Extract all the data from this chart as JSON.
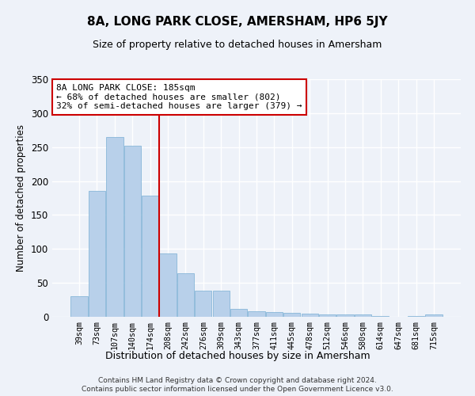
{
  "title": "8A, LONG PARK CLOSE, AMERSHAM, HP6 5JY",
  "subtitle": "Size of property relative to detached houses in Amersham",
  "xlabel": "Distribution of detached houses by size in Amersham",
  "ylabel": "Number of detached properties",
  "footnote1": "Contains HM Land Registry data © Crown copyright and database right 2024.",
  "footnote2": "Contains public sector information licensed under the Open Government Licence v3.0.",
  "categories": [
    "39sqm",
    "73sqm",
    "107sqm",
    "140sqm",
    "174sqm",
    "208sqm",
    "242sqm",
    "276sqm",
    "309sqm",
    "343sqm",
    "377sqm",
    "411sqm",
    "445sqm",
    "478sqm",
    "512sqm",
    "546sqm",
    "580sqm",
    "614sqm",
    "647sqm",
    "681sqm",
    "715sqm"
  ],
  "values": [
    30,
    185,
    265,
    252,
    178,
    93,
    64,
    38,
    38,
    12,
    8,
    7,
    6,
    5,
    3,
    3,
    3,
    1,
    0,
    1,
    3
  ],
  "bar_color": "#b8d0ea",
  "bar_edge_color": "#7aafd4",
  "vline_x_index": 4.5,
  "vline_color": "#cc0000",
  "annotation_title": "8A LONG PARK CLOSE: 185sqm",
  "annotation_line1": "← 68% of detached houses are smaller (802)",
  "annotation_line2": "32% of semi-detached houses are larger (379) →",
  "annotation_box_color": "#ffffff",
  "annotation_box_edge": "#cc0000",
  "bg_color": "#eef2f9",
  "grid_color": "#ffffff",
  "ylim": [
    0,
    350
  ],
  "yticks": [
    0,
    50,
    100,
    150,
    200,
    250,
    300,
    350
  ]
}
